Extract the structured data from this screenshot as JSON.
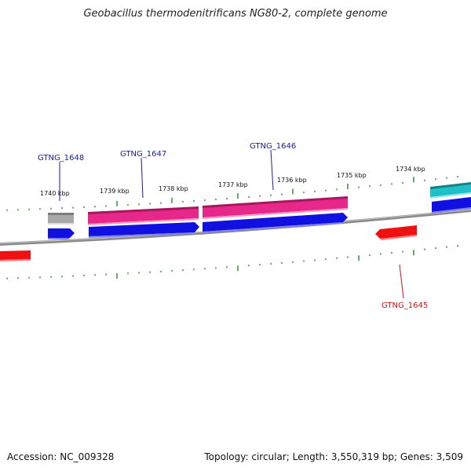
{
  "title": "Geobacillus thermodenitrificans NG80-2, complete genome",
  "footer": {
    "accession": "Accession: NC_009328",
    "summary": "Topology: circular; Length: 3,550,319 bp; Genes: 3,509"
  },
  "ticks": [
    {
      "label": "1740 kbp"
    },
    {
      "label": "1739 kbp"
    },
    {
      "label": "1738 kbp"
    },
    {
      "label": "1737 kbp"
    },
    {
      "label": "1736 kbp"
    },
    {
      "label": "1735 kbp"
    },
    {
      "label": "1734 kbp"
    }
  ],
  "gene_labels": [
    {
      "label": "GTNG_1648",
      "color": "#1a1aa6"
    },
    {
      "label": "GTNG_1647",
      "color": "#1a1aa6"
    },
    {
      "label": "GTNG_1646",
      "color": "#1a1aa6"
    },
    {
      "label": "GTNG_1645",
      "color": "#cc1111"
    }
  ],
  "colors": {
    "backbone": "#8a8a8a",
    "tick": "#1f7a1f",
    "forward_gene": "#1010e0",
    "reverse_gene": "#ee1111",
    "pink_feature": "#e8278a",
    "cyan_feature": "#20c0c8",
    "gray_feature": "#a8a8a8"
  }
}
